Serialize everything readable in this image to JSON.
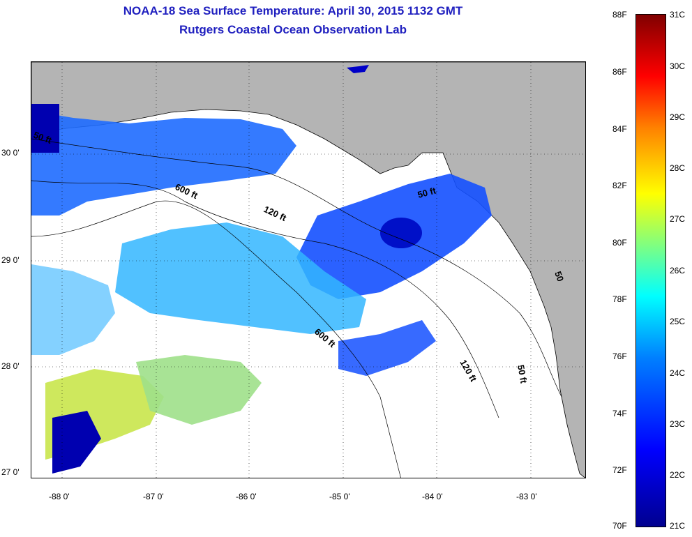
{
  "header": {
    "title": "NOAA-18 Sea Surface Temperature:  April 30, 2015 1132 GMT",
    "subtitle": "Rutgers Coastal Ocean Observation Lab"
  },
  "map": {
    "lat_labels": [
      "30 0'",
      "29 0'",
      "28 0'",
      "27 0'"
    ],
    "lon_labels": [
      "-88 0'",
      "-87 0'",
      "-86 0'",
      "-85 0'",
      "-84 0'",
      "-83 0'"
    ],
    "isobath_labels": [
      "50 ft",
      "600 ft",
      "120 ft",
      "50 ft",
      "600 ft",
      "120 ft",
      "50 ft",
      "50"
    ],
    "colors": {
      "land": "#b4b4b4",
      "cloud": "#ffffff",
      "coast": "#000000"
    }
  },
  "colorbar": {
    "fahrenheit_labels": [
      "88F",
      "86F",
      "84F",
      "82F",
      "80F",
      "78F",
      "76F",
      "74F",
      "72F",
      "70F"
    ],
    "celsius_labels": [
      "31C",
      "30C",
      "29C",
      "28C",
      "27C",
      "26C",
      "25C",
      "24C",
      "23C",
      "22C",
      "21C"
    ],
    "range_f": [
      70,
      88
    ],
    "range_c": [
      21,
      31
    ],
    "colors": [
      "#00008f",
      "#0000ff",
      "#0080ff",
      "#00ffff",
      "#80ff80",
      "#ffff00",
      "#ff8000",
      "#ff0000",
      "#800000"
    ]
  }
}
